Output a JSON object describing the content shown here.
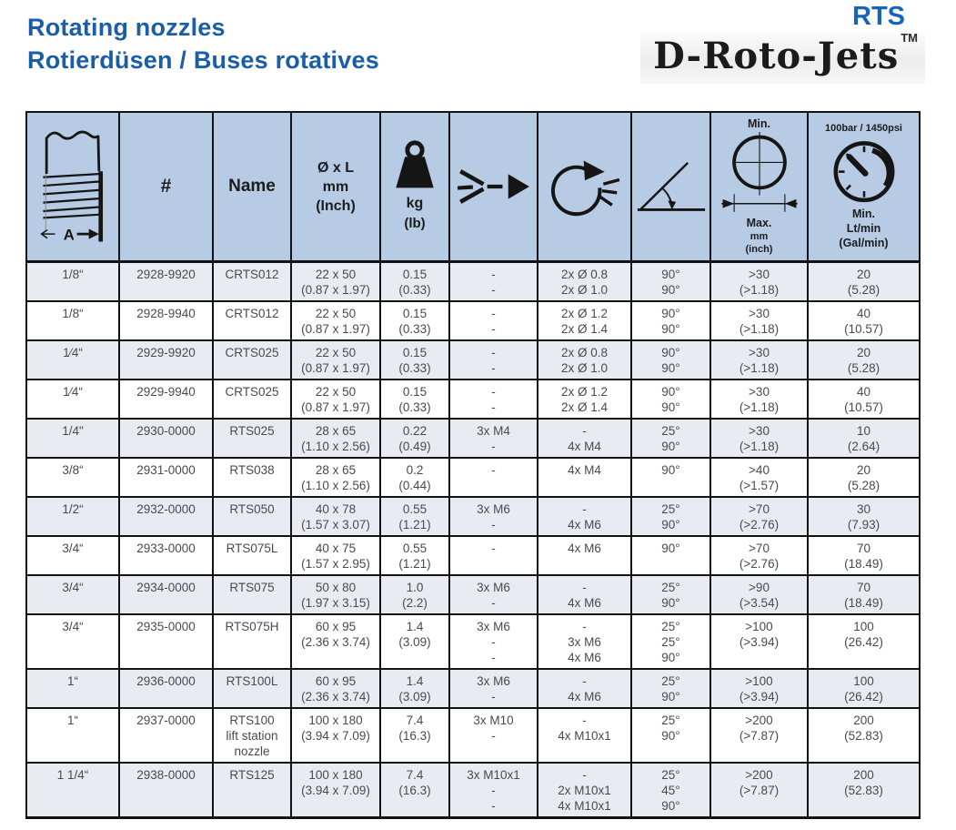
{
  "page": {
    "title_line1": "Rotating nozzles",
    "title_line2": "Rotierdüsen / Buses rotatives",
    "brand": {
      "series": "RTS",
      "logo": "D-Roto-Jets",
      "trademark": "TM"
    }
  },
  "colors": {
    "title_blue": "#1b5ea8",
    "series_blue": "#1565b8",
    "header_bg": "#b7cbe4",
    "row_shade": "#e9ebf3",
    "border": "#121212",
    "cell_text": "#4a4a4e"
  },
  "table": {
    "header": {
      "thread_dim_label": "A",
      "part": "#",
      "name": "Name",
      "size_lines": [
        "Ø x L",
        "mm",
        "(Inch)"
      ],
      "weight_lines": [
        "kg",
        "(lb)"
      ],
      "clearance_top": "Min.",
      "clearance_lines": [
        "Max.",
        "mm",
        "(inch)"
      ],
      "flow_top": "100bar / 1450psi",
      "flow_lines": [
        "Min.",
        "Lt/min",
        "(Gal/min)"
      ]
    },
    "columns": [
      {
        "key": "thread",
        "align": "right"
      },
      {
        "key": "part",
        "align": "center"
      },
      {
        "key": "name",
        "align": "center"
      },
      {
        "key": "size",
        "align": "center"
      },
      {
        "key": "weight",
        "align": "center"
      },
      {
        "key": "jets",
        "align": "left"
      },
      {
        "key": "orifices",
        "align": "left"
      },
      {
        "key": "angles",
        "align": "center"
      },
      {
        "key": "min",
        "align": "center"
      },
      {
        "key": "flow",
        "align": "center"
      }
    ],
    "rows": [
      {
        "thread": "1/8“",
        "part": "2928-9920",
        "name": [
          "CRTS012"
        ],
        "size": [
          "22 x 50",
          "(0.87 x 1.97)"
        ],
        "weight": [
          "0.15",
          "(0.33)"
        ],
        "jets": [
          "-",
          "-"
        ],
        "orifices": [
          "2x Ø 0.8",
          "2x Ø 1.0"
        ],
        "angles": [
          "90°",
          "90°"
        ],
        "min": [
          ">30",
          "(>1.18)"
        ],
        "flow": [
          "20",
          "(5.28)"
        ]
      },
      {
        "thread": "1/8“",
        "part": "2928-9940",
        "name": [
          "CRTS012"
        ],
        "size": [
          "22 x 50",
          "(0.87 x 1.97)"
        ],
        "weight": [
          "0.15",
          "(0.33)"
        ],
        "jets": [
          "-",
          "-"
        ],
        "orifices": [
          "2x Ø 1.2",
          "2x Ø 1.4"
        ],
        "angles": [
          "90°",
          "90°"
        ],
        "min": [
          ">30",
          "(>1.18)"
        ],
        "flow": [
          "40",
          "(10.57)"
        ]
      },
      {
        "thread": "1⁄4“",
        "part": "2929-9920",
        "name": [
          "CRTS025"
        ],
        "size": [
          "22 x 50",
          "(0.87 x 1.97)"
        ],
        "weight": [
          "0.15",
          "(0.33)"
        ],
        "jets": [
          "-",
          "-"
        ],
        "orifices": [
          "2x Ø 0.8",
          "2x Ø 1.0"
        ],
        "angles": [
          "90°",
          "90°"
        ],
        "min": [
          ">30",
          "(>1.18)"
        ],
        "flow": [
          "20",
          "(5.28)"
        ]
      },
      {
        "thread": "1⁄4“",
        "part": "2929-9940",
        "name": [
          "CRTS025"
        ],
        "size": [
          "22 x 50",
          "(0.87 x 1.97)"
        ],
        "weight": [
          "0.15",
          "(0.33)"
        ],
        "jets": [
          "-",
          "-"
        ],
        "orifices": [
          "2x Ø 1.2",
          "2x Ø 1.4"
        ],
        "angles": [
          "90°",
          "90°"
        ],
        "min": [
          ">30",
          "(>1.18)"
        ],
        "flow": [
          "40",
          "(10.57)"
        ]
      },
      {
        "thread": "1/4\"",
        "part": "2930-0000",
        "name": [
          "RTS025"
        ],
        "size": [
          "28 x 65",
          "(1.10 x 2.56)"
        ],
        "weight": [
          "0.22",
          "(0.49)"
        ],
        "jets": [
          "3x M4",
          "-"
        ],
        "orifices": [
          "-",
          "4x M4"
        ],
        "angles": [
          "25°",
          "90°"
        ],
        "min": [
          ">30",
          "(>1.18)"
        ],
        "flow": [
          "10",
          "(2.64)"
        ]
      },
      {
        "thread": "3/8“",
        "part": "2931-0000",
        "name": [
          "RTS038"
        ],
        "size": [
          "28 x 65",
          "(1.10 x 2.56)"
        ],
        "weight": [
          "0.2",
          "(0.44)"
        ],
        "jets": [
          "-"
        ],
        "orifices": [
          "4x M4"
        ],
        "angles": [
          "90°"
        ],
        "min": [
          ">40",
          "(>1.57)"
        ],
        "flow": [
          "20",
          "(5.28)"
        ]
      },
      {
        "thread": "1/2“",
        "part": "2932-0000",
        "name": [
          "RTS050"
        ],
        "size": [
          "40 x 78",
          "(1.57 x 3.07)"
        ],
        "weight": [
          "0.55",
          "(1.21)"
        ],
        "jets": [
          "3x M6",
          "-"
        ],
        "orifices": [
          "-",
          "4x M6"
        ],
        "angles": [
          "25°",
          "90°"
        ],
        "min": [
          ">70",
          "(>2.76)"
        ],
        "flow": [
          "30",
          "(7.93)"
        ]
      },
      {
        "thread": "3/4“",
        "part": "2933-0000",
        "name": [
          "RTS075L"
        ],
        "size": [
          "40 x 75",
          "(1.57 x 2.95)"
        ],
        "weight": [
          "0.55",
          "(1.21)"
        ],
        "jets": [
          "-"
        ],
        "orifices": [
          "4x M6"
        ],
        "angles": [
          "90°"
        ],
        "min": [
          ">70",
          "(>2.76)"
        ],
        "flow": [
          "70",
          "(18.49)"
        ]
      },
      {
        "thread": "3/4“",
        "part": "2934-0000",
        "name": [
          "RTS075"
        ],
        "size": [
          "50 x 80",
          "(1.97 x 3.15)"
        ],
        "weight": [
          "1.0",
          "(2.2)"
        ],
        "jets": [
          "3x M6",
          "-"
        ],
        "orifices": [
          "-",
          "4x M6"
        ],
        "angles": [
          "25°",
          "90°"
        ],
        "min": [
          ">90",
          "(>3.54)"
        ],
        "flow": [
          "70",
          "(18.49)"
        ]
      },
      {
        "thread": "3/4“",
        "part": "2935-0000",
        "name": [
          "RTS075H"
        ],
        "size": [
          "60 x 95",
          "(2.36 x 3.74)"
        ],
        "weight": [
          "1.4",
          "(3.09)"
        ],
        "jets": [
          "3x M6",
          "-",
          "-"
        ],
        "orifices": [
          "-",
          "3x M6",
          "4x M6"
        ],
        "angles": [
          "25°",
          "25°",
          "90°"
        ],
        "min": [
          ">100",
          "(>3.94)"
        ],
        "flow": [
          "100",
          "(26.42)"
        ]
      },
      {
        "thread": "1“",
        "part": "2936-0000",
        "name": [
          "RTS100L"
        ],
        "size": [
          "60 x 95",
          "(2.36 x 3.74)"
        ],
        "weight": [
          "1.4",
          "(3.09)"
        ],
        "jets": [
          "3x M6",
          "-"
        ],
        "orifices": [
          "-",
          "4x M6"
        ],
        "angles": [
          "25°",
          "90°"
        ],
        "min": [
          ">100",
          "(>3.94)"
        ],
        "flow": [
          "100",
          "(26.42)"
        ]
      },
      {
        "thread": "1“",
        "part": "2937-0000",
        "name": [
          "RTS100",
          "lift station",
          "nozzle"
        ],
        "size": [
          "100 x 180",
          "(3.94 x 7.09)"
        ],
        "weight": [
          "7.4",
          "(16.3)"
        ],
        "jets": [
          "3x M10",
          "-"
        ],
        "orifices": [
          "-",
          "4x M10x1"
        ],
        "angles": [
          "25°",
          "90°"
        ],
        "min": [
          ">200",
          "(>7.87)"
        ],
        "flow": [
          "200",
          "(52.83)"
        ]
      },
      {
        "thread": "1 1/4“",
        "part": "2938-0000",
        "name": [
          "RTS125"
        ],
        "size": [
          "100 x 180",
          "(3.94 x 7.09)"
        ],
        "weight": [
          "7.4",
          "(16.3)"
        ],
        "jets": [
          "3x M10x1",
          "-",
          "-"
        ],
        "orifices": [
          "-",
          "2x M10x1",
          "4x M10x1"
        ],
        "angles": [
          "25°",
          "45°",
          "90°"
        ],
        "min": [
          ">200",
          "(>7.87)"
        ],
        "flow": [
          "200",
          "(52.83)"
        ]
      }
    ]
  }
}
